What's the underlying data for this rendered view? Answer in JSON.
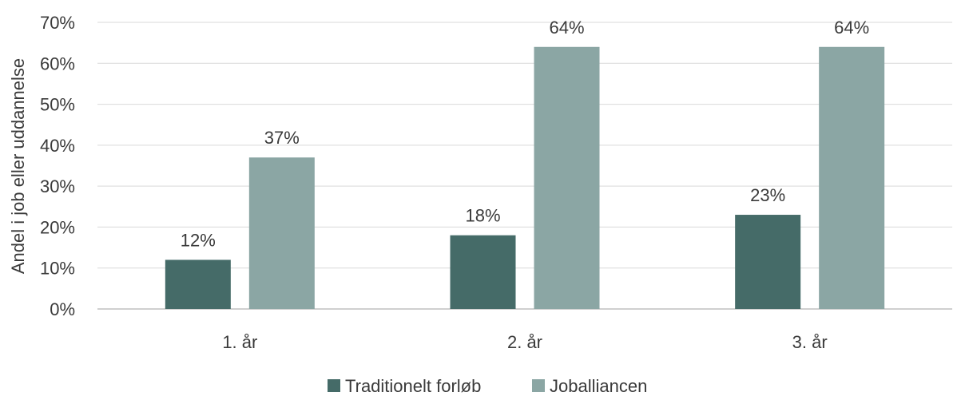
{
  "chart_data": {
    "type": "bar",
    "title": "",
    "xlabel": "",
    "ylabel": "Andel i job eller uddannelse",
    "categories": [
      "1. år",
      "2. år",
      "3. år"
    ],
    "series": [
      {
        "name": "Traditionelt forløb",
        "values": [
          12,
          18,
          23
        ],
        "labels": [
          "12%",
          "18%",
          "23%"
        ],
        "color": "#456b68"
      },
      {
        "name": "Joballiancen",
        "values": [
          37,
          64,
          64
        ],
        "labels": [
          "37%",
          "64%",
          "64%"
        ],
        "color": "#8ba6a4"
      }
    ],
    "ylim": [
      0,
      70
    ],
    "yticks": [
      0,
      10,
      20,
      30,
      40,
      50,
      60,
      70
    ],
    "ytick_labels": [
      "0%",
      "10%",
      "20%",
      "30%",
      "40%",
      "50%",
      "60%",
      "70%"
    ],
    "grid": true,
    "legend": "bottom-center",
    "gridline_color": "#d9d9d9",
    "axis_color": "#bfbfbf"
  }
}
